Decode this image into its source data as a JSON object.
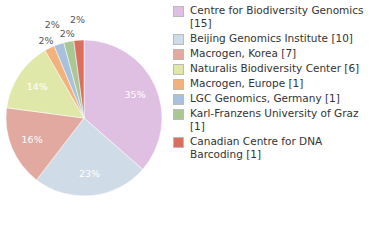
{
  "chart_data": {
    "type": "pie",
    "categories": [
      "Centre for Biodiversity Genomics [15]",
      "Beijing Genomics Institute [10]",
      "Macrogen, Korea [7]",
      "Naturalis Biodiversity Center [6]",
      "Macrogen, Europe [1]",
      "LGC Genomics, Germany [1]",
      "Karl-Franzens University of Graz [1]",
      "Canadian Centre for DNA Barcoding [1]"
    ],
    "values": [
      35,
      23,
      16,
      14,
      2,
      2,
      2,
      2
    ],
    "value_labels": [
      "35%",
      "23%",
      "16%",
      "14%",
      "2%",
      "2%",
      "2%",
      "2%"
    ],
    "colors": [
      "#dfc0e2",
      "#cfdbe6",
      "#e2a9a1",
      "#e0e8a9",
      "#f1b27b",
      "#a9c1dc",
      "#a9c795",
      "#d9705f"
    ],
    "data_labels": true,
    "legend": "right"
  }
}
